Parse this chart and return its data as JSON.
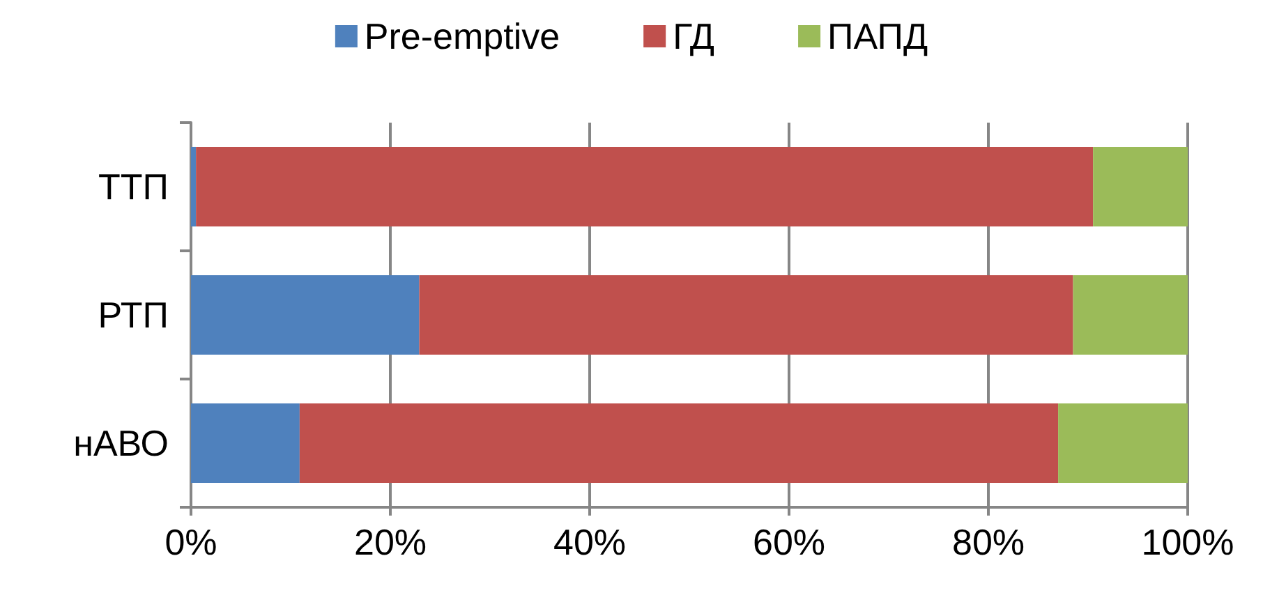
{
  "chart_data": {
    "type": "bar",
    "orientation": "horizontal",
    "stacked": true,
    "categories": [
      "ТТП",
      "РТП",
      "нАВО"
    ],
    "series": [
      {
        "name": "Pre-emptive",
        "color": "#4f81bd",
        "values": [
          0.5,
          22.9,
          10.9
        ]
      },
      {
        "name": "ГД",
        "color": "#c0504d",
        "values": [
          90.0,
          65.6,
          76.1
        ]
      },
      {
        "name": "ПАПД",
        "color": "#9bbb59",
        "values": [
          9.5,
          11.5,
          13.0
        ]
      }
    ],
    "xlim": [
      0,
      100
    ],
    "xticks": [
      {
        "value": 0,
        "label": "0%"
      },
      {
        "value": 20,
        "label": "20%"
      },
      {
        "value": 40,
        "label": "40%"
      },
      {
        "value": 60,
        "label": "60%"
      },
      {
        "value": 80,
        "label": "80%"
      },
      {
        "value": 100,
        "label": "100%"
      }
    ],
    "grid": "x",
    "legend": "top"
  }
}
